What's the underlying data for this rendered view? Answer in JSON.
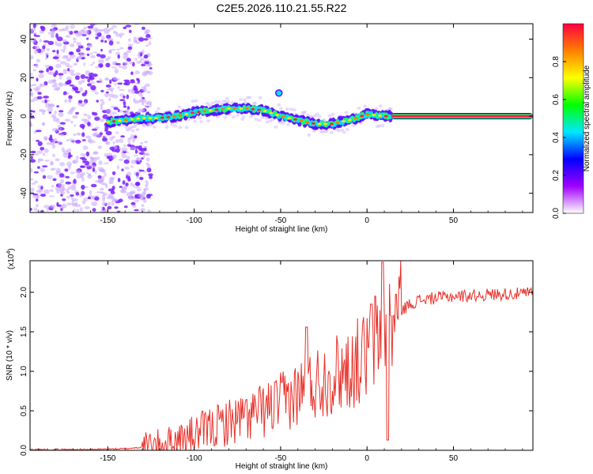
{
  "figure_title": "C2E5.2026.110.21.55.R22",
  "colors": {
    "snr_line": "#e8312a",
    "amplitude_band": "#7a1fff",
    "scatter": "#9b5bff",
    "axis": "#000000"
  },
  "chart_data": [
    {
      "type": "heatmap",
      "title": "C2E5.2026.110.21.55.R22",
      "xlabel": "Height of straight line (km)",
      "ylabel": "Frequency (Hz)",
      "xlim": [
        -195,
        96
      ],
      "ylim": [
        -50,
        48
      ],
      "x_ticks": [
        -150,
        -100,
        -50,
        0,
        50
      ],
      "y_ticks": [
        40,
        20,
        0,
        -20,
        -40
      ],
      "x_tick_labels": [
        "-150",
        "-100",
        "-50",
        "0",
        "50"
      ],
      "y_tick_labels": [
        "40",
        "20",
        "0",
        "-20",
        "-40"
      ],
      "ridge": {
        "x": [
          -150,
          -140,
          -130,
          -120,
          -110,
          -100,
          -90,
          -80,
          -70,
          -60,
          -50,
          -40,
          -30,
          -20,
          -10,
          0,
          10,
          14
        ],
        "y": [
          -3,
          -2,
          -1,
          -1,
          0,
          2,
          3,
          4,
          4,
          3,
          0,
          -2,
          -4,
          -4,
          -2,
          1,
          0,
          0
        ]
      },
      "constant_band": {
        "x_start": 14,
        "x_end": 96,
        "y": 0
      },
      "colorbar": {
        "label": "Normalized spectral amplitude",
        "range": [
          0,
          1
        ],
        "ticks": [
          0.0,
          0.2,
          0.4,
          0.6,
          0.8
        ],
        "tick_labels": [
          "0.0",
          "0.2",
          "0.4",
          "0.6",
          "0.8"
        ],
        "colormap": [
          "#ffffff",
          "#a000ff",
          "#0000ff",
          "#00e8ff",
          "#00ff00",
          "#ffff00",
          "#ff8000",
          "#ff0040"
        ]
      }
    },
    {
      "type": "line",
      "xlabel": "Height of straight line (km)",
      "ylabel": "SNR (10 * v/v)",
      "y_multiplier_label": "(x10",
      "y_multiplier_exp": "4",
      "y_multiplier_close": ")",
      "xlim": [
        -195,
        96
      ],
      "ylim": [
        0,
        2.4
      ],
      "x_ticks": [
        -150,
        -100,
        -50,
        0,
        50
      ],
      "y_ticks": [
        0.0,
        0.5,
        1.0,
        1.5,
        2.0
      ],
      "x_tick_labels": [
        "-150",
        "-100",
        "-50",
        "0",
        "50"
      ],
      "y_tick_labels": [
        "0.0",
        "0.5",
        "1.0",
        "1.5",
        "2.0"
      ],
      "series": [
        {
          "name": "SNR",
          "x": [
            -195,
            -180,
            -160,
            -140,
            -130,
            -120,
            -110,
            -100,
            -90,
            -80,
            -70,
            -60,
            -50,
            -40,
            -30,
            -20,
            -10,
            0,
            5,
            10,
            15,
            20,
            25,
            30,
            40,
            50,
            60,
            70,
            80,
            90,
            96
          ],
          "values": [
            0.01,
            0.01,
            0.01,
            0.02,
            0.04,
            0.07,
            0.12,
            0.2,
            0.28,
            0.36,
            0.42,
            0.5,
            0.6,
            0.72,
            0.85,
            0.95,
            1.05,
            1.2,
            1.4,
            1.5,
            1.65,
            1.78,
            1.85,
            1.9,
            1.93,
            1.95,
            1.96,
            1.97,
            1.98,
            1.98,
            2.0
          ]
        }
      ]
    }
  ]
}
